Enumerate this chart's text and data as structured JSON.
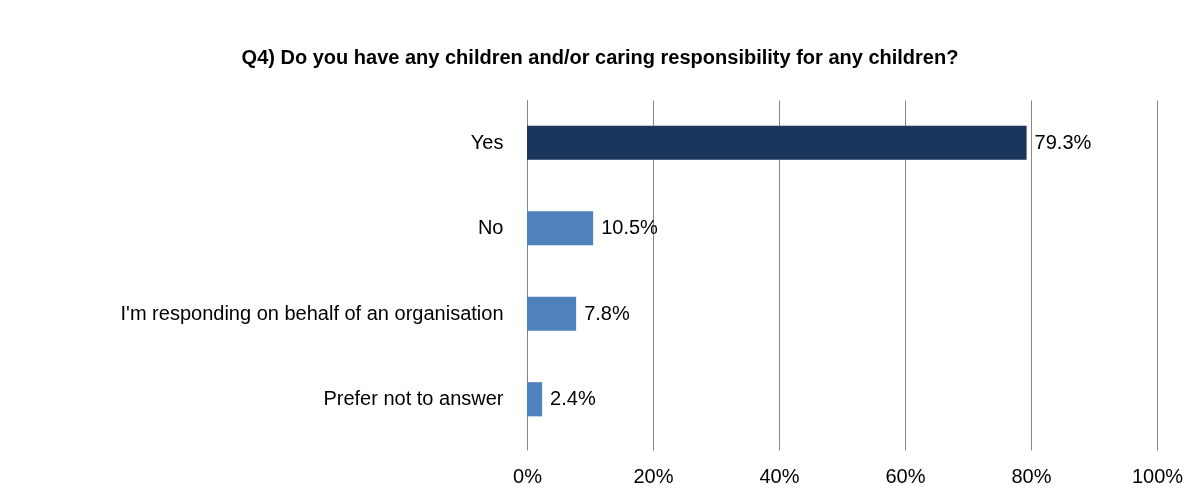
{
  "chart_data": {
    "type": "bar",
    "orientation": "horizontal",
    "title": "Q4) Do you have any children and/or caring responsibility for any children?",
    "categories": [
      "Yes",
      "No",
      "I'm responding on behalf of an organisation",
      "Prefer not to answer"
    ],
    "values": [
      79.3,
      10.5,
      7.8,
      2.4
    ],
    "colors": [
      "#1b365d",
      "#4f81bd",
      "#4f81bd",
      "#4f81bd"
    ],
    "value_labels": [
      "79.3%",
      "10.5%",
      "7.8%",
      "2.4%"
    ],
    "xlim": [
      0,
      100
    ],
    "xticks": [
      {
        "value": 0,
        "label": "0%"
      },
      {
        "value": 20,
        "label": "20%"
      },
      {
        "value": 40,
        "label": "40%"
      },
      {
        "value": 60,
        "label": "60%"
      },
      {
        "value": 80,
        "label": "80%"
      },
      {
        "value": 100,
        "label": "100%"
      }
    ],
    "grid": "x"
  }
}
